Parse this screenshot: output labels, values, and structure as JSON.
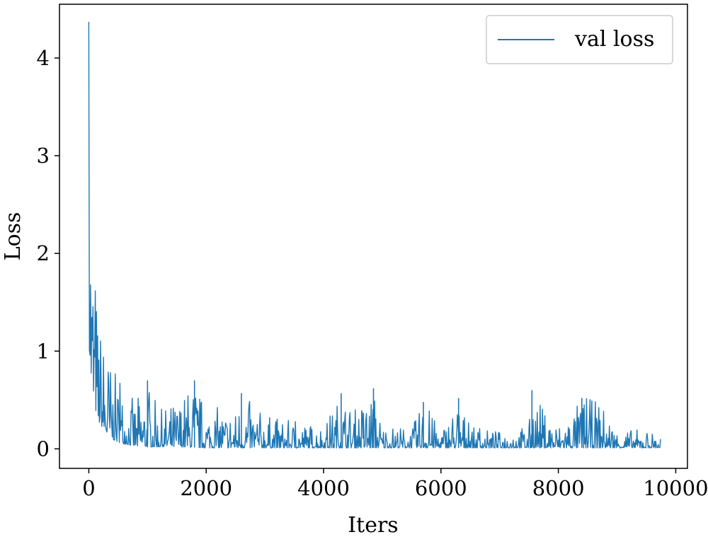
{
  "chart_data": {
    "type": "line",
    "xlabel": "Iters",
    "ylabel": "Loss",
    "xlim": [
      -500,
      10200
    ],
    "ylim": [
      -0.2,
      4.55
    ],
    "xticks": [
      0,
      2000,
      4000,
      6000,
      8000,
      10000
    ],
    "xtick_labels": [
      "0",
      "2000",
      "4000",
      "6000",
      "8000",
      "10000"
    ],
    "yticks": [
      0,
      1,
      2,
      3,
      4
    ],
    "ytick_labels": [
      "0",
      "1",
      "2",
      "3",
      "4"
    ],
    "grid": false,
    "legend_position": "top-right",
    "series": [
      {
        "name": "val loss",
        "color": "#1f77b4",
        "x_range": [
          0,
          9740
        ],
        "initial_value": 4.37,
        "upper_envelope": {
          "x": [
            0,
            50,
            100,
            150,
            200,
            300,
            400,
            500,
            600,
            800,
            1000,
            1200,
            1500,
            1800,
            2000,
            2500,
            2600,
            3000,
            3500,
            4000,
            4300,
            4500,
            4850,
            5000,
            5500,
            5700,
            6000,
            6300,
            6500,
            7000,
            7500,
            7550,
            7800,
            8000,
            8400,
            8700,
            9000,
            9500,
            9740
          ],
          "y": [
            4.37,
            2.4,
            2.1,
            1.45,
            1.3,
            1.1,
            0.85,
            0.7,
            0.6,
            0.5,
            0.7,
            0.4,
            0.5,
            0.7,
            0.45,
            0.4,
            0.57,
            0.35,
            0.28,
            0.25,
            0.57,
            0.4,
            0.62,
            0.25,
            0.22,
            0.48,
            0.2,
            0.52,
            0.22,
            0.18,
            0.25,
            0.6,
            0.38,
            0.25,
            0.52,
            0.5,
            0.2,
            0.2,
            0.15
          ]
        },
        "lower_envelope": {
          "x": [
            0,
            50,
            100,
            150,
            200,
            300,
            400,
            500,
            600,
            800,
            1000,
            1500,
            2000,
            3000,
            5000,
            7000,
            9740
          ],
          "y": [
            1.1,
            0.62,
            0.45,
            0.3,
            0.25,
            0.15,
            0.1,
            0.07,
            0.05,
            0.03,
            0.02,
            0.02,
            0.01,
            0.01,
            0.01,
            0.01,
            0.01
          ]
        }
      }
    ]
  }
}
